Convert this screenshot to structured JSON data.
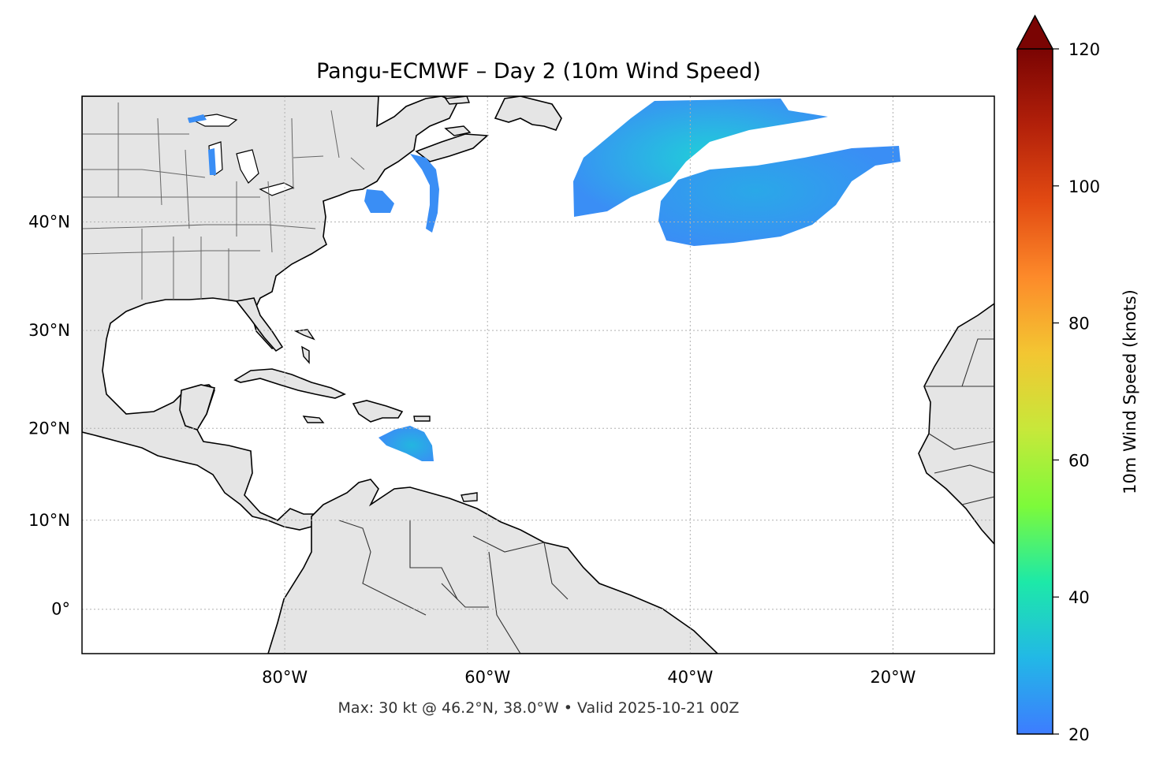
{
  "title": "Pangu-ECMWF – Day 2 (10m Wind Speed)",
  "footer": "Max: 30 kt @ 46.2°N, 38.0°W • Valid 2025-10-21 00Z",
  "map": {
    "lon_range": [
      -100,
      -10
    ],
    "lat_range": [
      -5,
      50
    ],
    "land_color": "#e5e5e5",
    "ocean_color": "#ffffff",
    "coast_color": "#000000",
    "border_color": "#666666",
    "grid": true,
    "lon_ticks": [
      {
        "value": -80,
        "label": "80°W"
      },
      {
        "value": -60,
        "label": "60°W"
      },
      {
        "value": -40,
        "label": "40°W"
      },
      {
        "value": -20,
        "label": "20°W"
      }
    ],
    "lat_ticks": [
      {
        "value": 40,
        "label": "40°N"
      },
      {
        "value": 30,
        "label": "30°N"
      },
      {
        "value": 20,
        "label": "20°N"
      },
      {
        "value": 10,
        "label": "10°N"
      },
      {
        "value": 0,
        "label": "0°"
      }
    ],
    "wind_areas": [
      {
        "name": "north-atlantic-west",
        "color": "#3a8ef5",
        "center_color": "#1fd0d8"
      },
      {
        "name": "north-atlantic-east",
        "color": "#3a8ef5",
        "center_color": "#2aa8e8"
      },
      {
        "name": "caribbean",
        "color": "#3a8ef5",
        "center_color": "#23b6e0"
      },
      {
        "name": "nova-scotia-coast",
        "color": "#3a8ef5"
      },
      {
        "name": "great-lakes",
        "color": "#3a8ef5"
      }
    ]
  },
  "colorbar": {
    "label": "10m Wind Speed (knots)",
    "min": 20,
    "max": 120,
    "extend": "max",
    "ticks": [
      {
        "value": 20,
        "label": "20"
      },
      {
        "value": 40,
        "label": "40"
      },
      {
        "value": 60,
        "label": "60"
      },
      {
        "value": 80,
        "label": "80"
      },
      {
        "value": 100,
        "label": "100"
      },
      {
        "value": 120,
        "label": "120"
      }
    ],
    "colors": [
      "#3d7cff",
      "#22b8e6",
      "#1de9a8",
      "#7dfa3a",
      "#c7e83a",
      "#f3c632",
      "#fd8a2a",
      "#e24a12",
      "#b2200a",
      "#7a0403"
    ]
  }
}
